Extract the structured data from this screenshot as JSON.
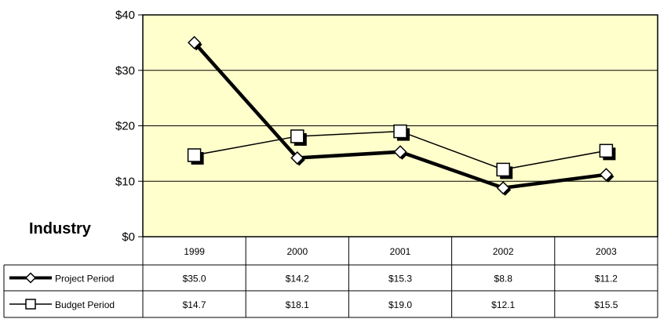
{
  "chart_data": {
    "type": "line",
    "side_label": "Industry",
    "categories": [
      "1999",
      "2000",
      "2001",
      "2002",
      "2003"
    ],
    "y_ticks": [
      "$0",
      "$10",
      "$20",
      "$30",
      "$40"
    ],
    "ylim": [
      0,
      40
    ],
    "grid": true,
    "series": [
      {
        "name": "Project Period",
        "marker": "diamond",
        "line_width": "thick",
        "values": [
          35.0,
          14.2,
          15.3,
          8.8,
          11.2
        ],
        "labels": [
          "$35.0",
          "$14.2",
          "$15.3",
          "$8.8",
          "$11.2"
        ]
      },
      {
        "name": "Budget Period",
        "marker": "square",
        "line_width": "thin",
        "values": [
          14.7,
          18.1,
          19.0,
          12.1,
          15.5
        ],
        "labels": [
          "$14.7",
          "$18.1",
          "$19.0",
          "$12.1",
          "$15.5"
        ]
      }
    ],
    "colors": {
      "plot_bg": "#ffffcc",
      "line": "#000000",
      "marker_fill": "#ffffff",
      "grid": "#000000"
    }
  }
}
